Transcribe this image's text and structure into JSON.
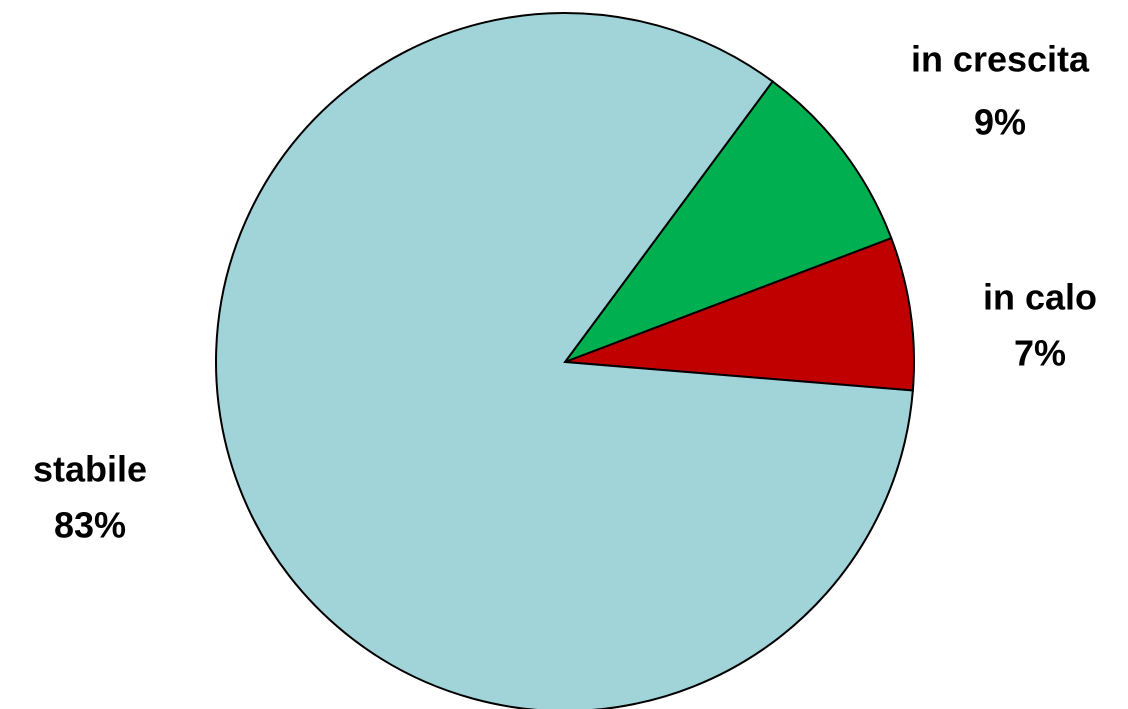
{
  "chart_data": {
    "type": "pie",
    "categories": [
      "in crescita",
      "in calo",
      "stabile"
    ],
    "values": [
      9,
      7,
      83
    ],
    "value_labels": [
      "9%",
      "7%",
      "83%"
    ],
    "colors": [
      "#00b050",
      "#c00000",
      "#a1d4d8"
    ]
  }
}
